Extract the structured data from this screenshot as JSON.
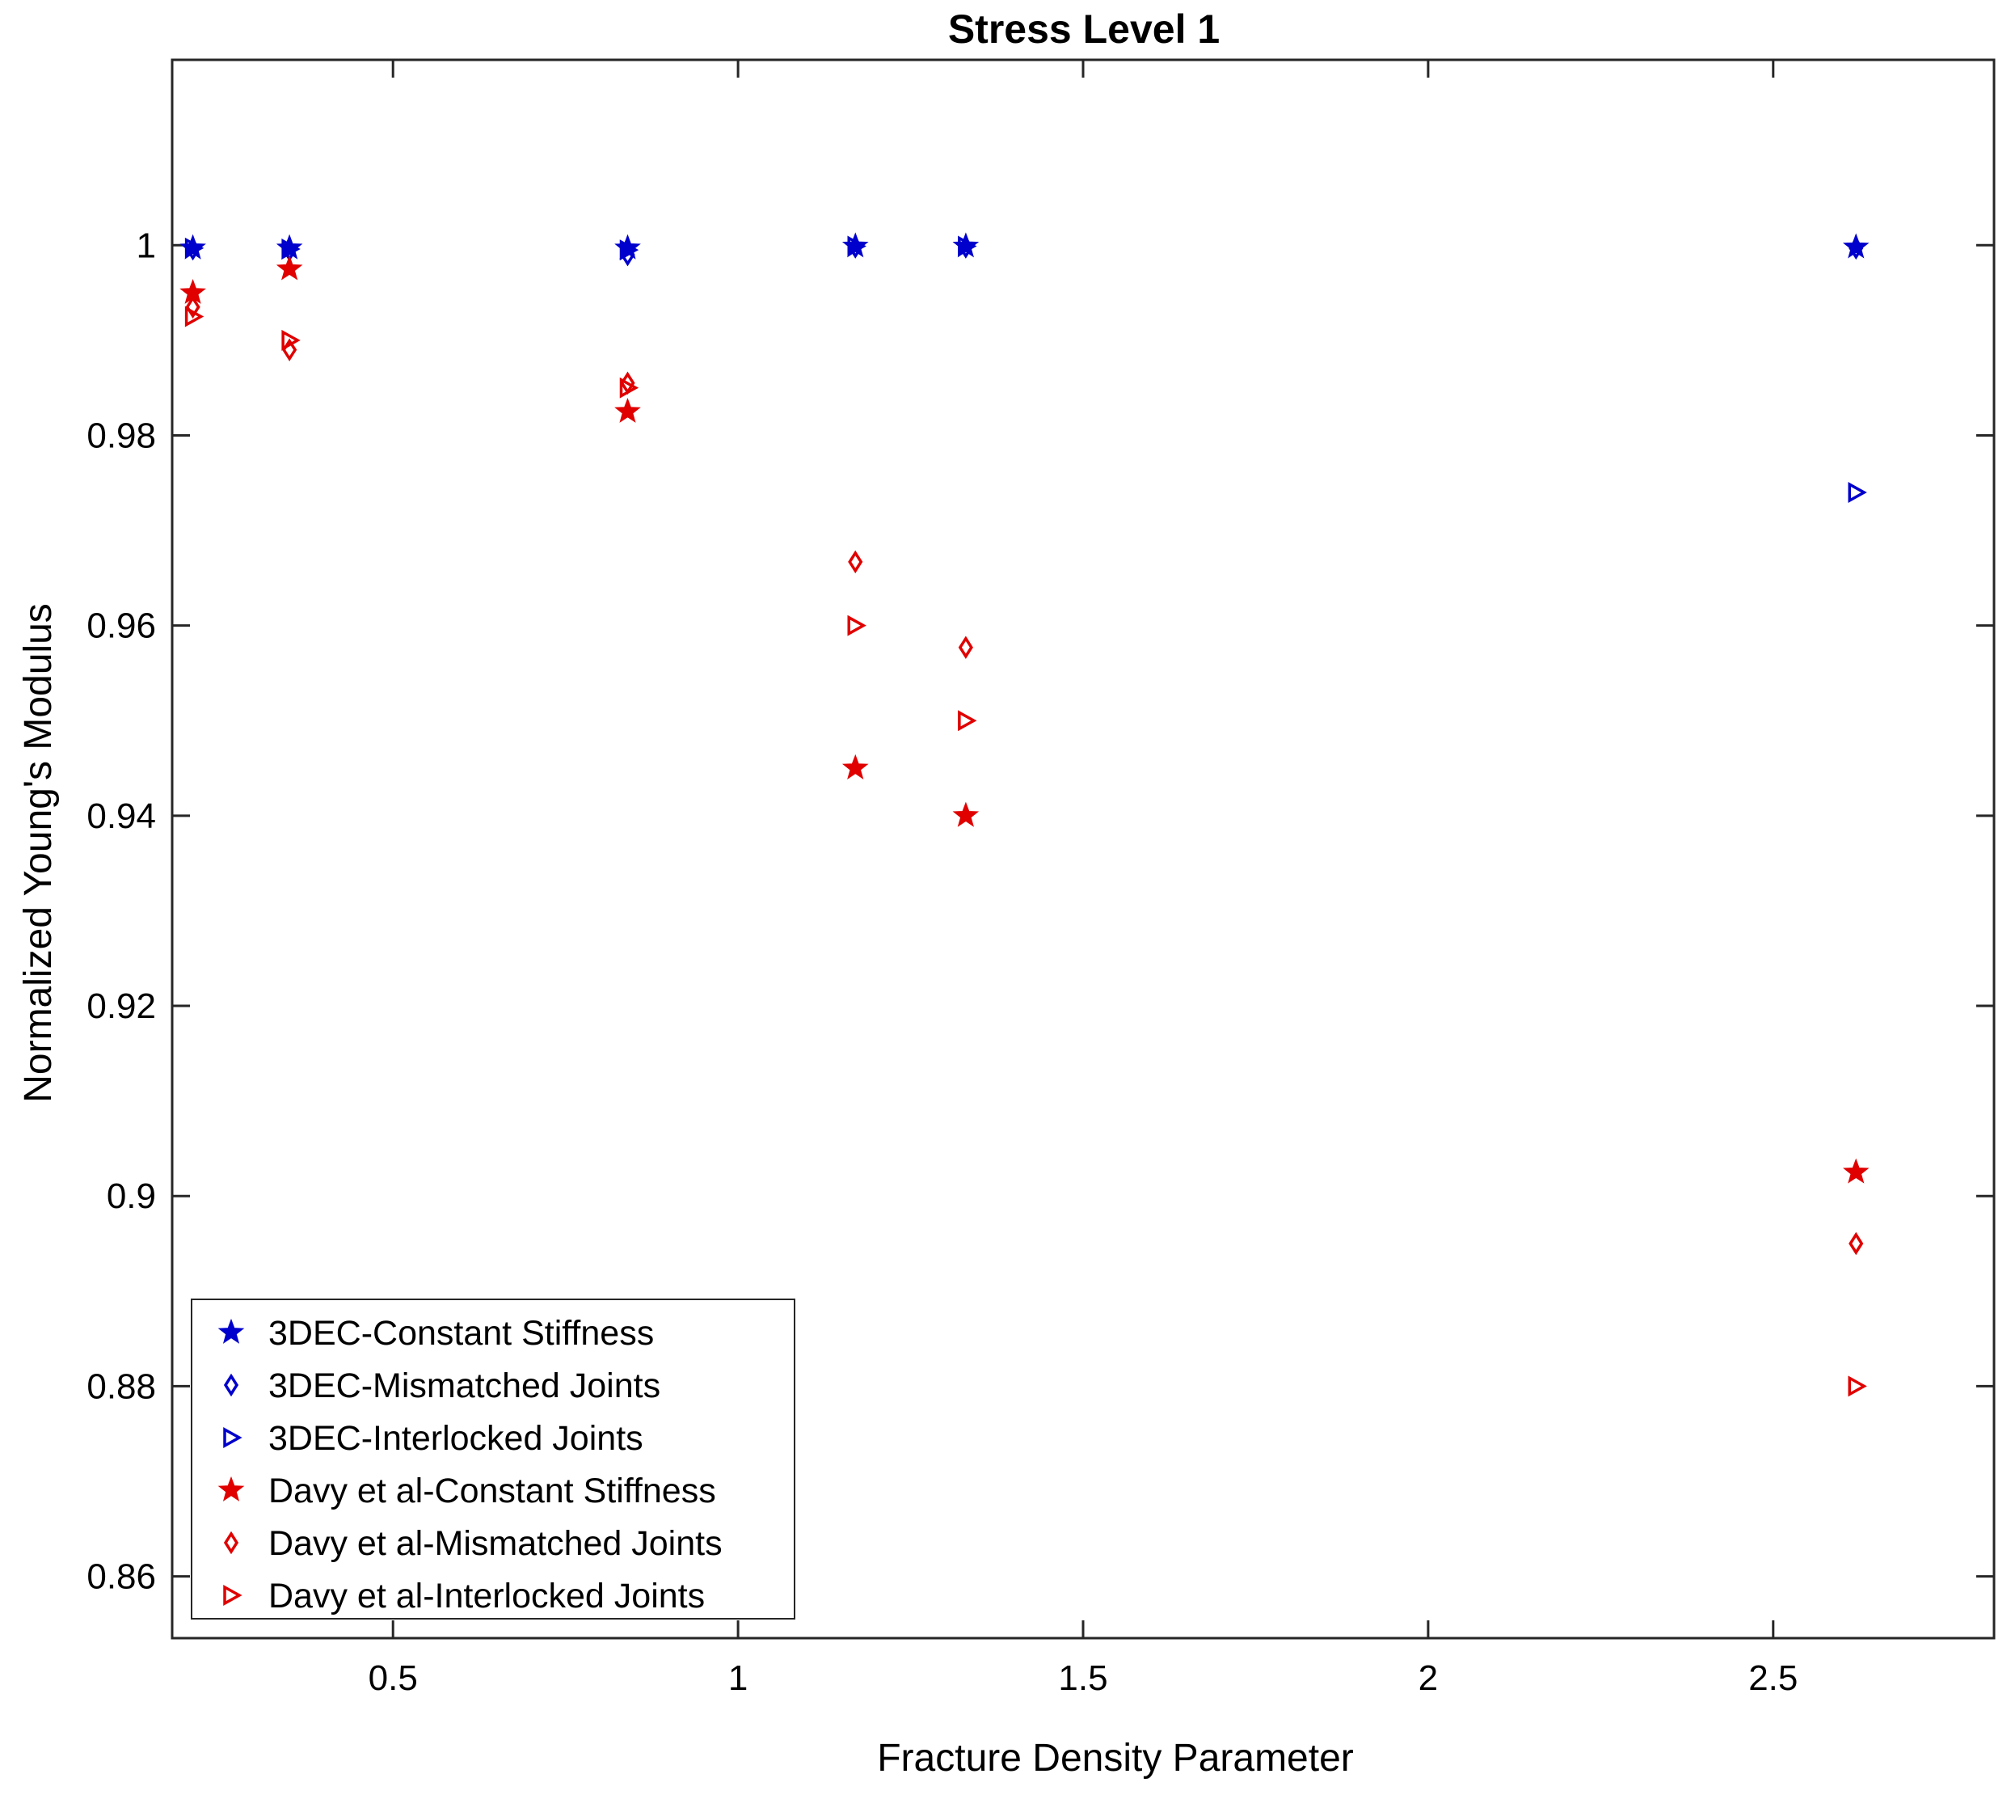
{
  "chart_data": {
    "type": "scatter",
    "title": "Stress Level 1",
    "xlabel": "Fracture Density Parameter",
    "ylabel": "Normalized Young's Modulus",
    "xlim": [
      0.18,
      2.82
    ],
    "ylim": [
      0.8535,
      1.0195
    ],
    "xticks": [
      0.5,
      1,
      1.5,
      2,
      2.5
    ],
    "xtick_labels": [
      "0.5",
      "1",
      "1.5",
      "2",
      "2.5"
    ],
    "yticks": [
      0.86,
      0.88,
      0.9,
      0.92,
      0.94,
      0.96,
      0.98,
      1
    ],
    "ytick_labels": [
      "0.86",
      "0.88",
      "0.9",
      "0.92",
      "0.94",
      "0.96",
      "0.98",
      "1"
    ],
    "grid": false,
    "legend_position": "bottom-left",
    "colors": {
      "blue": "#0000cc",
      "red": "#e00000"
    },
    "series": [
      {
        "name": "3DEC-Constant Stiffness",
        "marker": "star",
        "color": "#0000cc",
        "x": [
          0.21,
          0.35,
          0.84,
          1.17,
          1.33,
          2.62
        ],
        "y": [
          0.9997,
          0.9997,
          0.9997,
          0.9999,
          0.9999,
          0.9998
        ]
      },
      {
        "name": "3DEC-Mismatched Joints",
        "marker": "diamond",
        "color": "#0000cc",
        "x": [
          0.21,
          0.35,
          0.84,
          1.17,
          1.33,
          2.62
        ],
        "y": [
          0.9996,
          0.9995,
          0.999,
          0.9998,
          0.9998,
          0.9997
        ]
      },
      {
        "name": "3DEC-Interlocked Joints",
        "marker": "triangle-right",
        "color": "#0000cc",
        "x": [
          0.21,
          0.35,
          0.84,
          1.17,
          1.33,
          2.62
        ],
        "y": [
          0.9997,
          0.9996,
          0.9995,
          0.9999,
          0.9999,
          0.974
        ]
      },
      {
        "name": "Davy et al-Constant Stiffness",
        "marker": "star",
        "color": "#e00000",
        "x": [
          0.21,
          0.35,
          0.84,
          1.17,
          1.33,
          2.62
        ],
        "y": [
          0.995,
          0.9975,
          0.9825,
          0.945,
          0.94,
          0.9025
        ]
      },
      {
        "name": "Davy et al-Mismatched Joints",
        "marker": "diamond",
        "color": "#e00000",
        "x": [
          0.21,
          0.35,
          0.84,
          1.17,
          1.33,
          2.62
        ],
        "y": [
          0.9935,
          0.989,
          0.9855,
          0.9667,
          0.9577,
          0.895
        ]
      },
      {
        "name": "Davy et al-Interlocked Joints",
        "marker": "triangle-right",
        "color": "#e00000",
        "x": [
          0.21,
          0.35,
          0.84,
          1.17,
          1.33,
          2.62
        ],
        "y": [
          0.9925,
          0.99,
          0.985,
          0.96,
          0.95,
          0.88
        ]
      }
    ]
  }
}
